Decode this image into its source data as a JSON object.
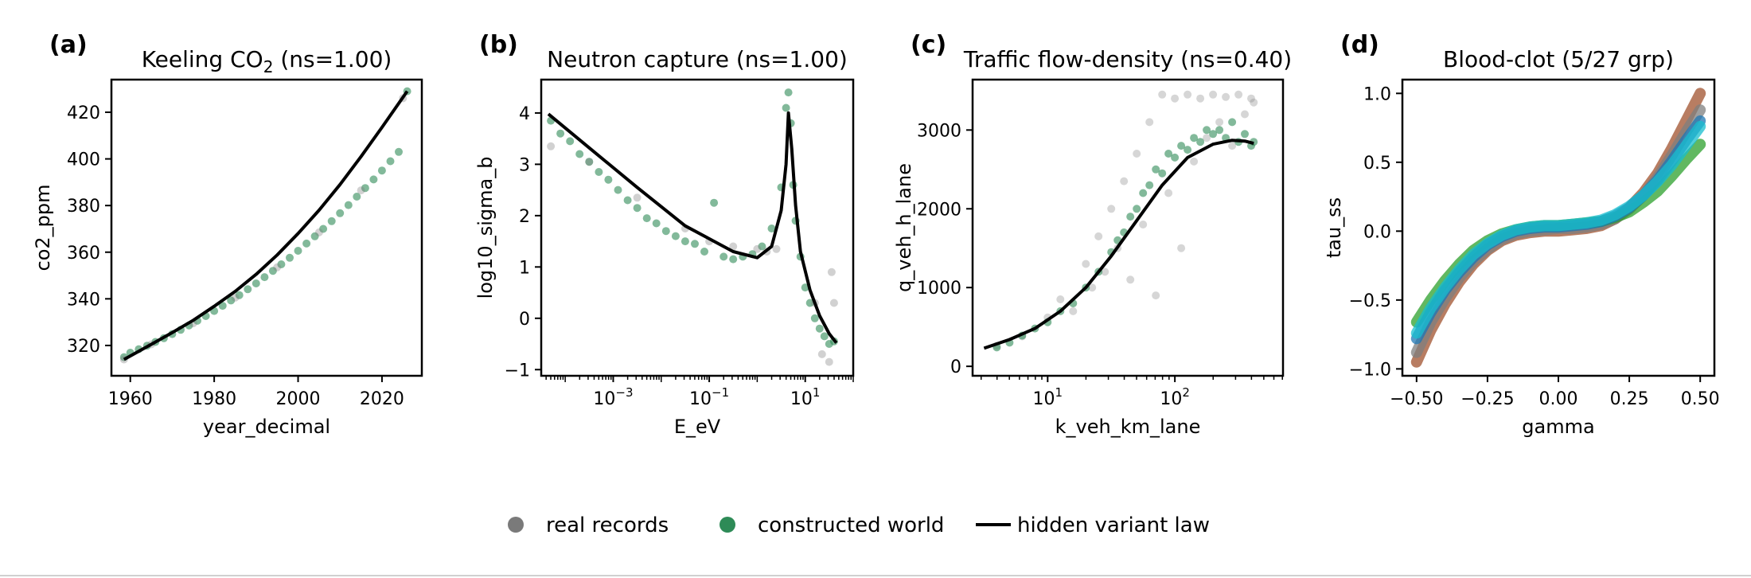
{
  "figure": {
    "legend": {
      "placement": "bottom-center",
      "entries": [
        {
          "label": "real records",
          "kind": "marker",
          "color": "#7a7a7a"
        },
        {
          "label": "constructed world",
          "kind": "marker",
          "color": "#2e8b57"
        },
        {
          "label": "hidden variant law",
          "kind": "line",
          "color": "#000000"
        }
      ]
    }
  },
  "chart_data": [
    {
      "type": "scatter",
      "panel_label": "(a)",
      "title": "Keeling CO",
      "title_sub": "2",
      "title_suffix": "  (ns=1.00)",
      "xlabel": "year_decimal",
      "ylabel": "co2_ppm",
      "xscale": "linear",
      "xlim": [
        1955.5,
        2029.5
      ],
      "ylim": [
        307,
        434
      ],
      "xticks": [
        1960,
        1980,
        2000,
        2020
      ],
      "xticklabels": [
        "1960",
        "1980",
        "2000",
        "2020"
      ],
      "yticks": [
        320,
        340,
        360,
        380,
        400,
        420
      ],
      "yticklabels": [
        "320",
        "340",
        "360",
        "380",
        "400",
        "420"
      ],
      "series": [
        {
          "name": "constructed world",
          "color": "#2e8b57",
          "style": "points",
          "x": [
            1958.5,
            1960,
            1962,
            1964,
            1966,
            1968,
            1970,
            1972,
            1974,
            1976,
            1978,
            1980,
            1982,
            1984,
            1986,
            1988,
            1990,
            1992,
            1994,
            1996,
            1998,
            2000,
            2002,
            2004,
            2006,
            2008,
            2010,
            2012,
            2014,
            2016,
            2018,
            2020,
            2022,
            2024,
            2026
          ],
          "y": [
            315,
            316.9,
            318.4,
            319.9,
            321.5,
            323.1,
            324.9,
            326.7,
            328.6,
            330.6,
            332.6,
            334.8,
            337.0,
            339.3,
            341.6,
            344.1,
            346.6,
            349.3,
            352.0,
            354.8,
            357.6,
            360.6,
            363.7,
            366.8,
            370.0,
            373.3,
            376.7,
            380.2,
            383.8,
            387.5,
            391.2,
            395.0,
            399.0,
            403.0,
            429
          ]
        },
        {
          "name": "real records",
          "color": "#7a7a7a",
          "style": "points",
          "x": [
            1958.5,
            1965,
            1975,
            1985,
            1995,
            2005,
            2015,
            2025
          ],
          "y": [
            314,
            320.5,
            329.5,
            340.5,
            353.5,
            368.5,
            386.5,
            426
          ]
        },
        {
          "name": "hidden variant law",
          "color": "#000000",
          "style": "line",
          "x": [
            1958.5,
            1965,
            1970,
            1975,
            1980,
            1985,
            1990,
            1995,
            2000,
            2005,
            2010,
            2015,
            2020,
            2026
          ],
          "y": [
            314,
            320.5,
            325.5,
            330.8,
            336.8,
            343.2,
            350.5,
            358.8,
            368.0,
            378.0,
            389.0,
            401.0,
            413.5,
            429
          ]
        }
      ]
    },
    {
      "type": "scatter",
      "panel_label": "(b)",
      "title": "Neutron capture  (ns=1.00)",
      "xlabel": "E_eV",
      "ylabel": "log10_sigma_b",
      "xscale": "log",
      "xlim": [
        -4.5,
        2.0
      ],
      "ylim": [
        -1.12,
        4.65
      ],
      "xticks": [
        -3,
        -1,
        1
      ],
      "xticklabels_base": [
        "10",
        "10",
        "10"
      ],
      "xticklabels_exp": [
        "−3",
        "−1",
        "1"
      ],
      "yticks": [
        -1,
        0,
        1,
        2,
        3,
        4
      ],
      "yticklabels": [
        "−1",
        "0",
        "1",
        "2",
        "3",
        "4"
      ],
      "series": [
        {
          "name": "constructed world",
          "color": "#2e8b57",
          "style": "points",
          "x": [
            -4.3,
            -4.1,
            -3.9,
            -3.7,
            -3.5,
            -3.3,
            -3.1,
            -2.9,
            -2.7,
            -2.5,
            -2.3,
            -2.1,
            -1.9,
            -1.7,
            -1.5,
            -1.3,
            -1.1,
            -0.9,
            -0.7,
            -0.5,
            -0.3,
            -0.1,
            0.1,
            0.3,
            0.5,
            0.6,
            0.65,
            0.7,
            0.75,
            0.8,
            0.9,
            1.0,
            1.1,
            1.2,
            1.3,
            1.4,
            1.5,
            1.6
          ],
          "y": [
            3.85,
            3.6,
            3.45,
            3.2,
            3.05,
            2.85,
            2.7,
            2.5,
            2.3,
            2.15,
            1.95,
            1.85,
            1.7,
            1.6,
            1.5,
            1.45,
            1.3,
            2.25,
            1.2,
            1.15,
            1.2,
            1.25,
            1.4,
            1.75,
            2.55,
            4.1,
            4.4,
            3.8,
            2.6,
            1.9,
            1.2,
            0.6,
            0.3,
            0.0,
            -0.2,
            -0.35,
            -0.5,
            -0.45
          ]
        },
        {
          "name": "real records",
          "color": "#7a7a7a",
          "style": "points",
          "x": [
            -4.3,
            -3.5,
            -2.5,
            -1.5,
            -1.0,
            -0.5,
            0.0,
            0.2,
            0.4,
            1.2,
            1.35,
            1.5,
            1.55,
            1.6
          ],
          "y": [
            3.35,
            3.05,
            2.35,
            1.75,
            1.5,
            1.4,
            1.35,
            1.3,
            1.35,
            0.3,
            -0.7,
            -0.85,
            0.9,
            0.3
          ]
        },
        {
          "name": "hidden variant law",
          "color": "#000000",
          "style": "line",
          "x": [
            -4.35,
            -3.5,
            -2.5,
            -1.5,
            -0.5,
            0.0,
            0.3,
            0.5,
            0.6,
            0.65,
            0.72,
            0.8,
            0.9,
            1.1,
            1.3,
            1.5,
            1.65
          ],
          "y": [
            3.98,
            3.32,
            2.55,
            1.8,
            1.3,
            1.18,
            1.4,
            2.1,
            3.0,
            4.0,
            3.3,
            2.2,
            1.3,
            0.55,
            0.05,
            -0.3,
            -0.48
          ]
        }
      ]
    },
    {
      "type": "scatter",
      "panel_label": "(c)",
      "title": "Traffic flow-density  (ns=0.40)",
      "xlabel": "k_veh_km_lane",
      "ylabel": "q_veh_h_lane",
      "xscale": "log",
      "xlim": [
        0.41,
        2.85
      ],
      "ylim": [
        -120,
        3640
      ],
      "xticks": [
        1,
        2
      ],
      "xticklabels_base": [
        "10",
        "10"
      ],
      "xticklabels_exp": [
        "1",
        "2"
      ],
      "yticks": [
        0,
        1000,
        2000,
        3000
      ],
      "yticklabels": [
        "0",
        "1000",
        "2000",
        "3000"
      ],
      "series": [
        {
          "name": "real records",
          "color": "#8a8a8a",
          "style": "points",
          "x": [
            0.6,
            0.8,
            1.0,
            1.1,
            1.2,
            1.3,
            1.35,
            1.4,
            1.45,
            1.5,
            1.55,
            1.6,
            1.65,
            1.7,
            1.75,
            1.8,
            1.85,
            1.9,
            1.95,
            2.0,
            2.05,
            2.1,
            2.15,
            2.2,
            2.25,
            2.3,
            2.35,
            2.4,
            2.45,
            2.5,
            2.55,
            2.6,
            2.62
          ],
          "y": [
            260,
            380,
            620,
            850,
            700,
            1300,
            1000,
            1650,
            1200,
            2000,
            1500,
            2350,
            1100,
            2700,
            1800,
            3100,
            900,
            3450,
            2200,
            3400,
            1500,
            3450,
            2600,
            3400,
            2900,
            3450,
            3100,
            3420,
            2800,
            3450,
            3200,
            3400,
            3350
          ]
        },
        {
          "name": "constructed world",
          "color": "#2e8b57",
          "style": "points",
          "x": [
            0.6,
            0.7,
            0.8,
            0.9,
            1.0,
            1.1,
            1.2,
            1.3,
            1.4,
            1.5,
            1.55,
            1.6,
            1.65,
            1.7,
            1.75,
            1.8,
            1.85,
            1.9,
            1.95,
            2.0,
            2.05,
            2.1,
            2.15,
            2.2,
            2.25,
            2.3,
            2.35,
            2.4,
            2.45,
            2.5,
            2.55,
            2.6,
            2.62
          ],
          "y": [
            240,
            300,
            390,
            480,
            560,
            700,
            800,
            1000,
            1200,
            1450,
            1600,
            1700,
            1900,
            2000,
            2200,
            2300,
            2500,
            2450,
            2700,
            2650,
            2800,
            2750,
            2900,
            2850,
            3000,
            2950,
            3000,
            2900,
            3100,
            2850,
            2950,
            2800,
            2850
          ]
        },
        {
          "name": "hidden variant law",
          "color": "#000000",
          "style": "line",
          "x": [
            0.5,
            0.7,
            0.9,
            1.1,
            1.3,
            1.5,
            1.7,
            1.9,
            2.1,
            2.3,
            2.45,
            2.55,
            2.62
          ],
          "y": [
            230,
            340,
            480,
            700,
            1000,
            1400,
            1850,
            2300,
            2650,
            2820,
            2870,
            2860,
            2830
          ]
        }
      ]
    },
    {
      "type": "line",
      "panel_label": "(d)",
      "title": "Blood-clot  (5/27 grp)",
      "xlabel": "gamma",
      "ylabel": "tau_ss",
      "xscale": "linear",
      "xlim": [
        -0.55,
        0.55
      ],
      "ylim": [
        -1.05,
        1.1
      ],
      "xticks": [
        -0.5,
        -0.25,
        0.0,
        0.25,
        0.5
      ],
      "xticklabels": [
        "−0.50",
        "−0.25",
        "0.00",
        "0.25",
        "0.50"
      ],
      "yticks": [
        -1.0,
        -0.5,
        0.0,
        0.5,
        1.0
      ],
      "yticklabels": [
        "−1.0",
        "−0.5",
        "0.0",
        "0.5",
        "1.0"
      ],
      "x": [
        -0.5,
        -0.45,
        -0.4,
        -0.35,
        -0.3,
        -0.25,
        -0.2,
        -0.15,
        -0.1,
        -0.05,
        0.0,
        0.05,
        0.1,
        0.15,
        0.2,
        0.25,
        0.3,
        0.35,
        0.4,
        0.45,
        0.5
      ],
      "series": [
        {
          "color": "#a0522d",
          "style": "band",
          "values": [
            -0.95,
            -0.72,
            -0.53,
            -0.37,
            -0.24,
            -0.14,
            -0.07,
            -0.03,
            -0.01,
            0.0,
            0.0,
            0.01,
            0.02,
            0.04,
            0.09,
            0.17,
            0.28,
            0.42,
            0.6,
            0.8,
            1.0
          ]
        },
        {
          "color": "#7f7f7f",
          "style": "band",
          "values": [
            -0.88,
            -0.66,
            -0.49,
            -0.34,
            -0.22,
            -0.13,
            -0.06,
            -0.02,
            0.0,
            0.01,
            0.02,
            0.02,
            0.03,
            0.05,
            0.09,
            0.16,
            0.26,
            0.39,
            0.55,
            0.72,
            0.88
          ]
        },
        {
          "color": "#2ca02c",
          "style": "band",
          "values": [
            -0.66,
            -0.5,
            -0.36,
            -0.24,
            -0.14,
            -0.07,
            -0.02,
            0.01,
            0.03,
            0.04,
            0.04,
            0.05,
            0.06,
            0.07,
            0.1,
            0.14,
            0.21,
            0.29,
            0.4,
            0.52,
            0.63
          ]
        },
        {
          "color": "#1f77b4",
          "style": "band",
          "values": [
            -0.78,
            -0.59,
            -0.43,
            -0.3,
            -0.19,
            -0.1,
            -0.04,
            0.0,
            0.02,
            0.03,
            0.03,
            0.04,
            0.05,
            0.07,
            0.11,
            0.17,
            0.26,
            0.37,
            0.51,
            0.66,
            0.8
          ]
        },
        {
          "color": "#17becf",
          "style": "band",
          "values": [
            -0.74,
            -0.56,
            -0.41,
            -0.28,
            -0.17,
            -0.09,
            -0.03,
            0.01,
            0.03,
            0.04,
            0.04,
            0.05,
            0.06,
            0.08,
            0.12,
            0.18,
            0.26,
            0.36,
            0.48,
            0.62,
            0.76
          ]
        }
      ]
    }
  ]
}
